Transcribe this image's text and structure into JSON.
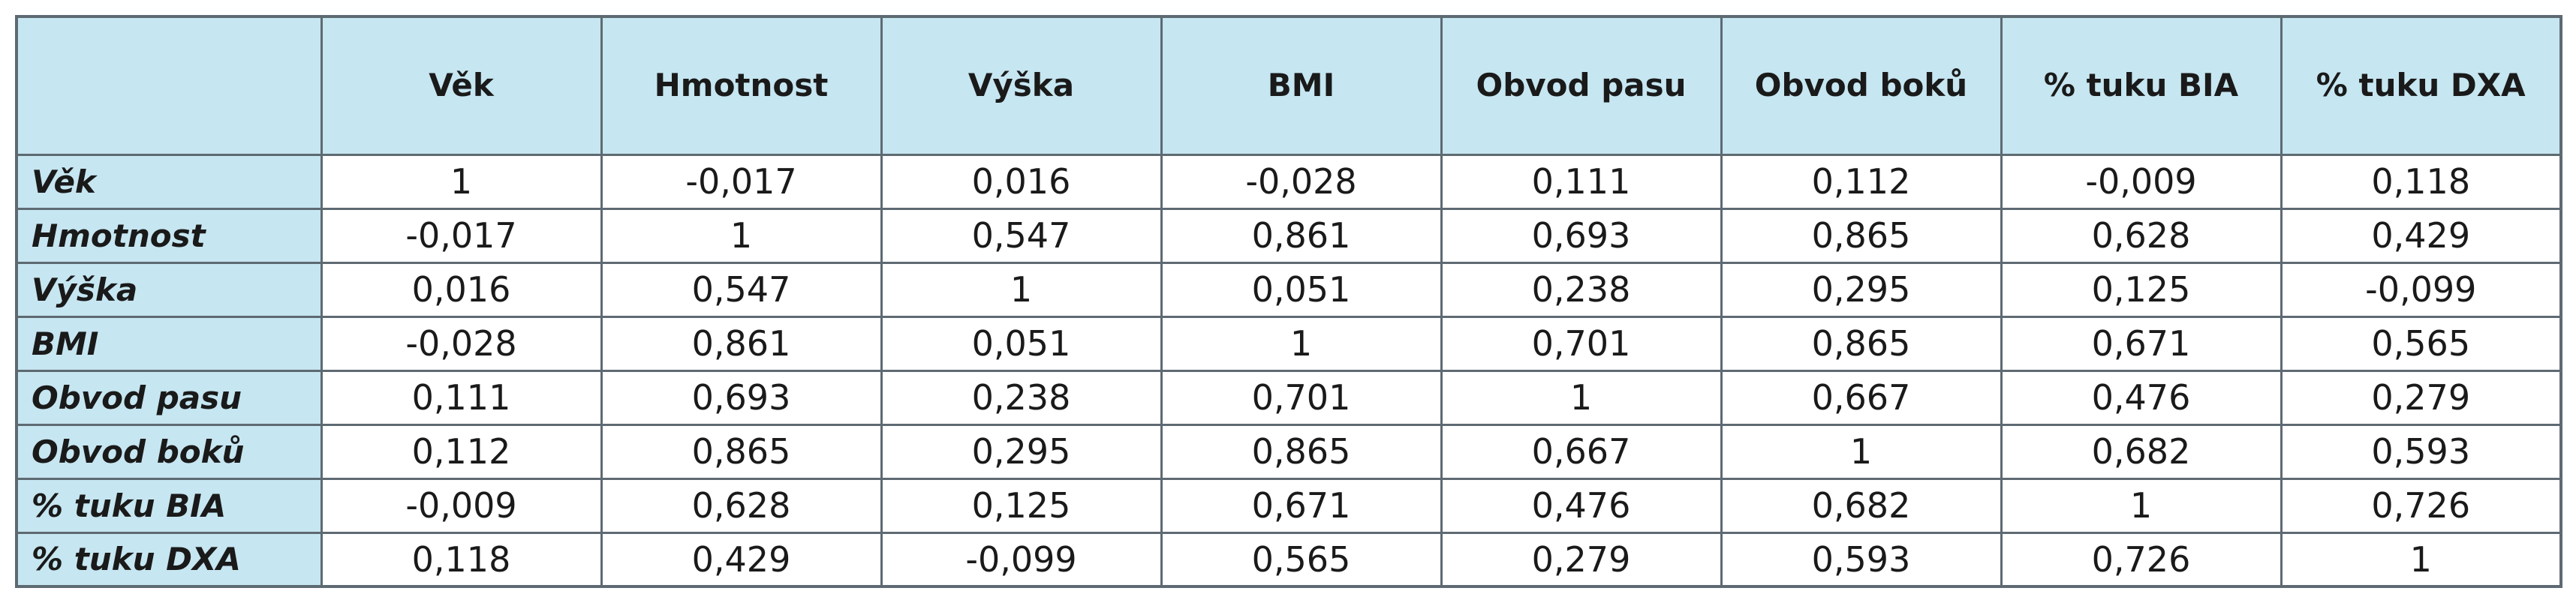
{
  "table": {
    "column_headers": [
      "Věk",
      "Hmotnost",
      "Výška",
      "BMI",
      "Obvod pasu",
      "Obvod boků",
      "% tuku BIA",
      "% tuku DXA"
    ],
    "rows": [
      {
        "label": "Věk",
        "values": [
          "1",
          "-0,017",
          "0,016",
          "-0,028",
          "0,111",
          "0,112",
          "-0,009",
          "0,118"
        ]
      },
      {
        "label": "Hmotnost",
        "values": [
          "-0,017",
          "1",
          "0,547",
          "0,861",
          "0,693",
          "0,865",
          "0,628",
          "0,429"
        ]
      },
      {
        "label": "Výška",
        "values": [
          "0,016",
          "0,547",
          "1",
          "0,051",
          "0,238",
          "0,295",
          "0,125",
          "-0,099"
        ]
      },
      {
        "label": "BMI",
        "values": [
          "-0,028",
          "0,861",
          "0,051",
          "1",
          "0,701",
          "0,865",
          "0,671",
          "0,565"
        ]
      },
      {
        "label": "Obvod pasu",
        "values": [
          "0,111",
          "0,693",
          "0,238",
          "0,701",
          "1",
          "0,667",
          "0,476",
          "0,279"
        ]
      },
      {
        "label": "Obvod boků",
        "values": [
          "0,112",
          "0,865",
          "0,295",
          "0,865",
          "0,667",
          "1",
          "0,682",
          "0,593"
        ]
      },
      {
        "label": "% tuku BIA",
        "values": [
          "-0,009",
          "0,628",
          "0,125",
          "0,671",
          "0,476",
          "0,682",
          "1",
          "0,726"
        ]
      },
      {
        "label": "% tuku DXA",
        "values": [
          "0,118",
          "0,429",
          "-0,099",
          "0,565",
          "0,279",
          "0,593",
          "0,726",
          "1"
        ]
      }
    ]
  },
  "colors": {
    "header_background": "#c6e6f1",
    "border": "#5e6a72",
    "text": "#1a1a1a"
  }
}
